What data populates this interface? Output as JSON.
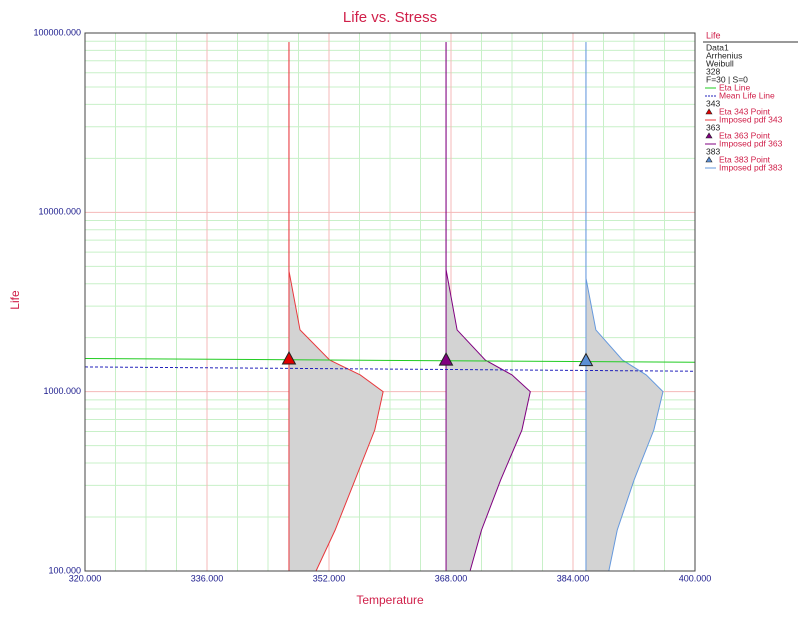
{
  "chart_data": {
    "type": "line",
    "title": "Life vs. Stress",
    "x_label": "Temperature",
    "y_label": "Life",
    "log_y": true,
    "grid": true,
    "xlim": [
      320,
      400
    ],
    "xticks": [
      {
        "value": 320,
        "label": "320.000"
      },
      {
        "value": 336,
        "label": "336.000"
      },
      {
        "value": 352,
        "label": "352.000"
      },
      {
        "value": 368,
        "label": "368.000"
      },
      {
        "value": 384,
        "label": "384.000"
      },
      {
        "value": 400,
        "label": "400.000"
      }
    ],
    "xminor": [
      324,
      328,
      332,
      340,
      344,
      348,
      356,
      360,
      364,
      372,
      376,
      380,
      388,
      392,
      396
    ],
    "ylim": [
      100,
      100000
    ],
    "yticks": [
      {
        "value": 100,
        "label": "100.000"
      },
      {
        "value": 1000,
        "label": "1000.000"
      },
      {
        "value": 10000,
        "label": "10000.000"
      },
      {
        "value": 100000,
        "label": "100000.000"
      }
    ],
    "yminor": [
      200,
      300,
      400,
      500,
      600,
      700,
      800,
      900,
      2000,
      3000,
      4000,
      5000,
      6000,
      7000,
      8000,
      9000,
      20000,
      30000,
      40000,
      50000,
      60000,
      70000,
      80000,
      90000
    ],
    "legend_title": "Life",
    "legend_header": [
      "Data1",
      "Arrhenius",
      "Weibull",
      "328",
      "F=30 | S=0"
    ],
    "series": [
      {
        "name": "Eta Line",
        "kind": "line",
        "color": "#22cc22",
        "x": [
          320,
          400
        ],
        "values": [
          1530,
          1460
        ]
      },
      {
        "name": "Mean Life Line",
        "kind": "dashed",
        "color": "#2222bb",
        "x": [
          320,
          400
        ],
        "values": [
          1374,
          1300
        ]
      },
      {
        "group": "343",
        "name": "Eta 343 Point",
        "kind": "point",
        "color": "#e00000",
        "x": [
          346.75
        ],
        "values": [
          1520
        ]
      },
      {
        "name": "Imposed pdf 343",
        "kind": "pdf",
        "color": "#e8383d",
        "x": [
          346.75,
          346.75,
          348.2,
          352.1,
          356.1,
          359.1,
          358.0,
          355.4,
          352.8,
          350.3
        ],
        "values": [
          89000,
          4710,
          2210,
          1500,
          1240,
          1000,
          611,
          321,
          169,
          100
        ]
      },
      {
        "group": "363",
        "name": "Eta 363 Point",
        "kind": "point",
        "color": "#800080",
        "x": [
          367.35
        ],
        "values": [
          1500
        ]
      },
      {
        "name": "Imposed pdf 363",
        "kind": "pdf",
        "color": "#800080",
        "x": [
          367.35,
          367.35,
          368.8,
          372.5,
          376.0,
          378.4,
          377.3,
          374.5,
          372.0,
          370.5
        ],
        "values": [
          89000,
          4800,
          2210,
          1500,
          1240,
          1000,
          611,
          321,
          169,
          100
        ]
      },
      {
        "group": "383",
        "name": "Eta 383 Point",
        "kind": "point",
        "color": "#5b8fd6",
        "x": [
          385.7
        ],
        "values": [
          1490
        ]
      },
      {
        "name": "Imposed pdf 383",
        "kind": "pdf",
        "color": "#6699dd",
        "x": [
          385.7,
          385.7,
          387.0,
          390.5,
          393.6,
          395.8,
          394.6,
          392.0,
          389.8,
          388.7
        ],
        "values": [
          89000,
          4300,
          2210,
          1500,
          1240,
          1000,
          611,
          321,
          169,
          100
        ]
      }
    ]
  }
}
